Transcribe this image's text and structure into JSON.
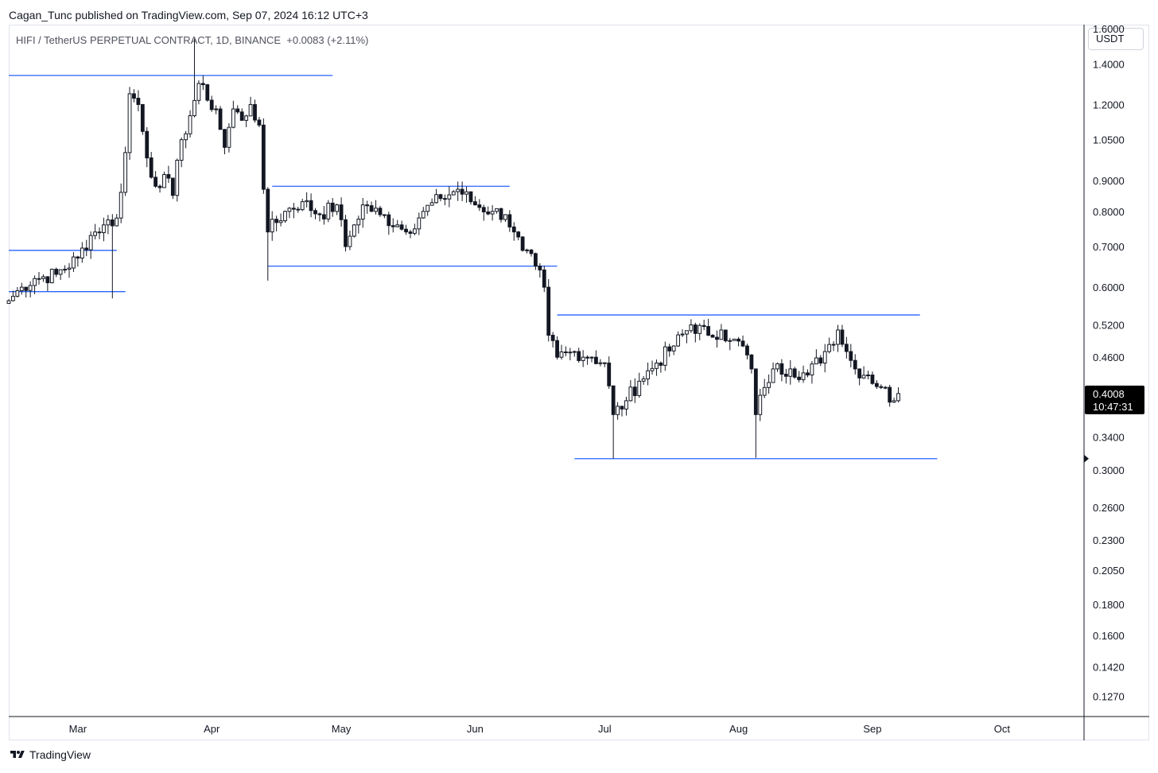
{
  "header": {
    "publish_line": "Cagan_Tunc published on TradingView.com, Sep 07, 2024 16:12 UTC+3",
    "title": "HIFI / TetherUS PERPETUAL CONTRACT, 1D, BINANCE  +0.0083 (+2.11%)",
    "currency": "USDT"
  },
  "footer": {
    "logo_text": "TradingView",
    "logo_icon": "tradingview-logo-icon"
  },
  "colors": {
    "line": "#2962ff",
    "candle": "#131722",
    "last_price_bg": "#000000"
  },
  "chart_data": {
    "type": "candlestick",
    "symbol": "HIFI / TetherUS PERPETUAL CONTRACT",
    "interval": "1D",
    "exchange": "BINANCE",
    "change": "+0.0083",
    "change_pct": "+2.11%",
    "y_scale": "log",
    "ylim": [
      0.118,
      1.62
    ],
    "yticks": [
      "1.6000",
      "1.4000",
      "1.2000",
      "1.0500",
      "0.9000",
      "0.8000",
      "0.7000",
      "0.6000",
      "0.5200",
      "0.4600",
      "0.3400",
      "0.3000",
      "0.2600",
      "0.2300",
      "0.2050",
      "0.1800",
      "0.1600",
      "0.1420",
      "0.1270"
    ],
    "xlim": [
      "2024-02-14",
      "2024-10-20"
    ],
    "xticks": [
      {
        "label": "Mar",
        "date": "2024-03-01"
      },
      {
        "label": "Apr",
        "date": "2024-04-01"
      },
      {
        "label": "May",
        "date": "2024-05-01"
      },
      {
        "label": "Jun",
        "date": "2024-06-01"
      },
      {
        "label": "Jul",
        "date": "2024-07-01"
      },
      {
        "label": "Aug",
        "date": "2024-08-01"
      },
      {
        "label": "Sep",
        "date": "2024-09-01"
      },
      {
        "label": "Oct",
        "date": "2024-10-01"
      }
    ],
    "last_price": "0.4008",
    "countdown": "10:47:31",
    "grid": false,
    "series_anchors": [
      [
        "2024-02-14",
        0.57
      ],
      [
        "2024-02-17",
        0.6
      ],
      [
        "2024-02-20",
        0.62
      ],
      [
        "2024-02-25",
        0.63
      ],
      [
        "2024-03-01",
        0.67
      ],
      [
        "2024-03-04",
        0.73
      ],
      [
        "2024-03-07",
        0.76
      ],
      [
        "2024-03-10",
        0.78
      ],
      [
        "2024-03-11",
        0.86
      ],
      [
        "2024-03-12",
        1.0
      ],
      [
        "2024-03-13",
        1.25
      ],
      [
        "2024-03-15",
        1.2
      ],
      [
        "2024-03-17",
        0.98
      ],
      [
        "2024-03-19",
        0.88
      ],
      [
        "2024-03-21",
        0.92
      ],
      [
        "2024-03-23",
        0.85
      ],
      [
        "2024-03-25",
        1.05
      ],
      [
        "2024-03-27",
        1.15
      ],
      [
        "2024-03-29",
        1.3
      ],
      [
        "2024-03-31",
        1.22
      ],
      [
        "2024-04-02",
        1.18
      ],
      [
        "2024-04-04",
        1.02
      ],
      [
        "2024-04-06",
        1.18
      ],
      [
        "2024-04-08",
        1.13
      ],
      [
        "2024-04-10",
        1.2
      ],
      [
        "2024-04-12",
        1.11
      ],
      [
        "2024-04-13",
        0.87
      ],
      [
        "2024-04-14",
        0.74
      ],
      [
        "2024-04-18",
        0.8
      ],
      [
        "2024-04-22",
        0.83
      ],
      [
        "2024-04-26",
        0.79
      ],
      [
        "2024-04-30",
        0.82
      ],
      [
        "2024-05-02",
        0.7
      ],
      [
        "2024-05-04",
        0.76
      ],
      [
        "2024-05-06",
        0.82
      ],
      [
        "2024-05-10",
        0.79
      ],
      [
        "2024-05-14",
        0.76
      ],
      [
        "2024-05-16",
        0.74
      ],
      [
        "2024-05-20",
        0.8
      ],
      [
        "2024-05-24",
        0.84
      ],
      [
        "2024-05-28",
        0.87
      ],
      [
        "2024-06-01",
        0.82
      ],
      [
        "2024-06-05",
        0.8
      ],
      [
        "2024-06-08",
        0.79
      ],
      [
        "2024-06-10",
        0.74
      ],
      [
        "2024-06-12",
        0.69
      ],
      [
        "2024-06-15",
        0.65
      ],
      [
        "2024-06-17",
        0.6
      ],
      [
        "2024-06-18",
        0.5
      ],
      [
        "2024-06-20",
        0.46
      ],
      [
        "2024-06-24",
        0.47
      ],
      [
        "2024-06-28",
        0.46
      ],
      [
        "2024-07-01",
        0.45
      ],
      [
        "2024-07-03",
        0.37
      ],
      [
        "2024-07-06",
        0.39
      ],
      [
        "2024-07-09",
        0.42
      ],
      [
        "2024-07-13",
        0.45
      ],
      [
        "2024-07-17",
        0.48
      ],
      [
        "2024-07-21",
        0.52
      ],
      [
        "2024-07-25",
        0.5
      ],
      [
        "2024-07-28",
        0.51
      ],
      [
        "2024-07-30",
        0.49
      ],
      [
        "2024-08-02",
        0.48
      ],
      [
        "2024-08-04",
        0.44
      ],
      [
        "2024-08-05",
        0.37
      ],
      [
        "2024-08-07",
        0.41
      ],
      [
        "2024-08-09",
        0.44
      ],
      [
        "2024-08-13",
        0.44
      ],
      [
        "2024-08-17",
        0.43
      ],
      [
        "2024-08-21",
        0.47
      ],
      [
        "2024-08-24",
        0.51
      ],
      [
        "2024-08-26",
        0.47
      ],
      [
        "2024-08-28",
        0.44
      ],
      [
        "2024-08-31",
        0.43
      ],
      [
        "2024-09-03",
        0.41
      ],
      [
        "2024-09-06",
        0.39
      ],
      [
        "2024-09-07",
        0.4008
      ]
    ],
    "horizontal_lines": [
      {
        "price": 1.34,
        "from": "2024-02-14",
        "to": "2024-04-29"
      },
      {
        "price": 0.69,
        "from": "2024-02-14",
        "to": "2024-03-10"
      },
      {
        "price": 0.59,
        "from": "2024-02-14",
        "to": "2024-03-12"
      },
      {
        "price": 0.88,
        "from": "2024-04-15",
        "to": "2024-06-09"
      },
      {
        "price": 0.65,
        "from": "2024-04-14",
        "to": "2024-06-20"
      },
      {
        "price": 0.54,
        "from": "2024-06-20",
        "to": "2024-09-12"
      },
      {
        "price": 0.313,
        "from": "2024-06-24",
        "to": "2024-09-16"
      }
    ]
  }
}
